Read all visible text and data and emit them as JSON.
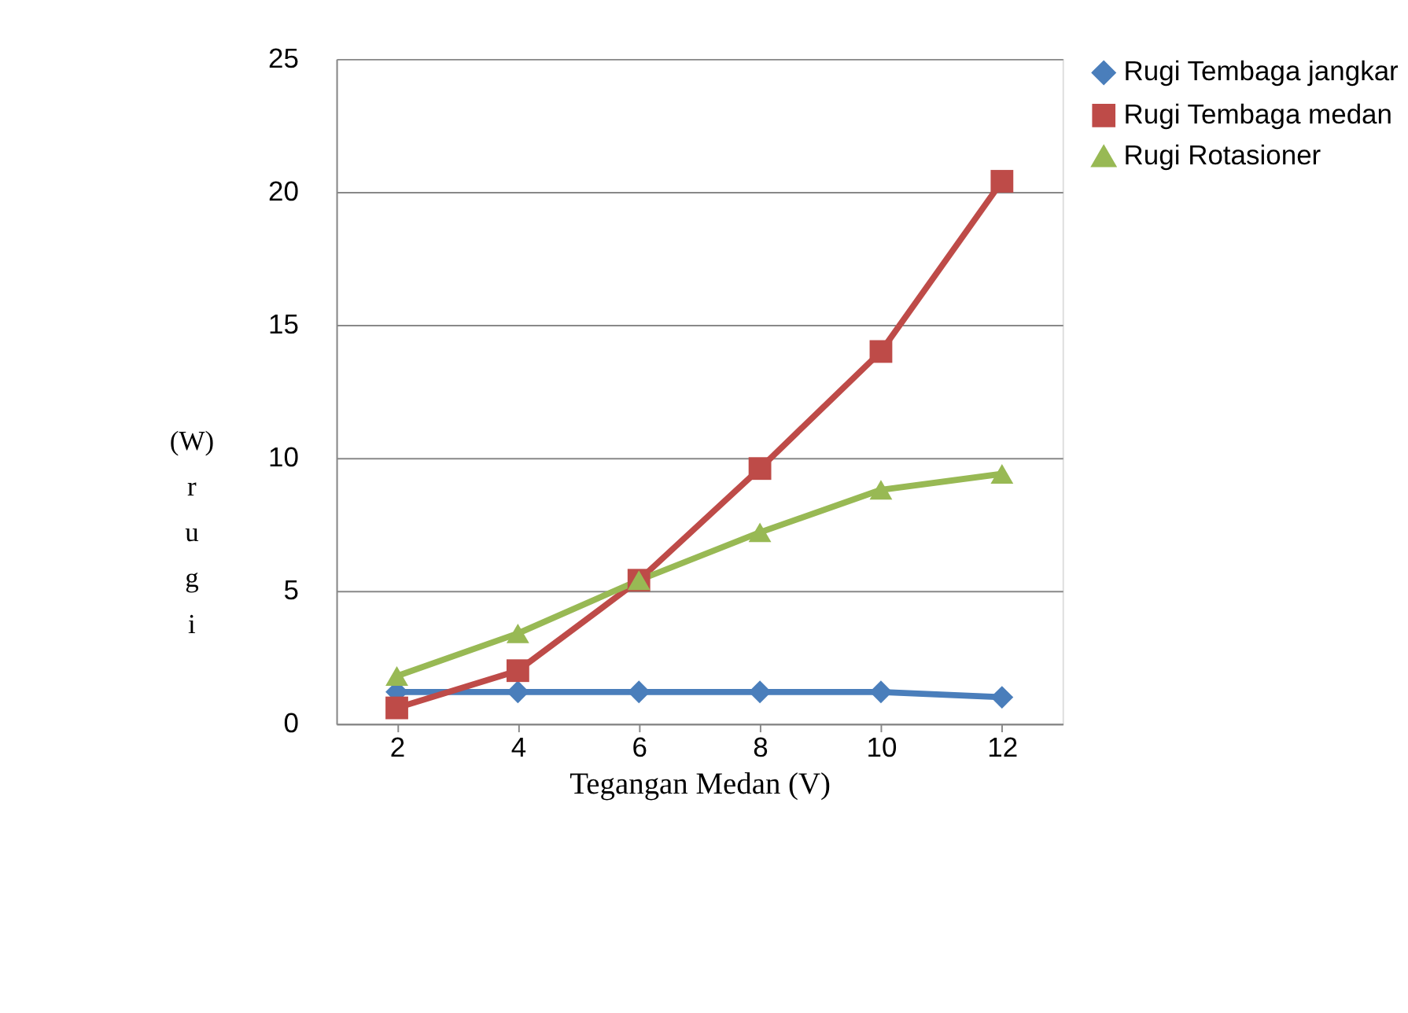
{
  "chart_data": {
    "type": "line",
    "xlabel": "Tegangan Medan (V)",
    "ylabel": "(W) rugi",
    "categories": [
      "2",
      "4",
      "6",
      "8",
      "10",
      "12"
    ],
    "series": [
      {
        "name": "Rugi Tembaga jangkar",
        "color": "#4a7ebb",
        "marker": "diamond",
        "values": [
          1.2,
          1.2,
          1.2,
          1.2,
          1.2,
          1.0
        ]
      },
      {
        "name": "Rugi Tembaga medan",
        "color": "#be4b48",
        "marker": "square",
        "values": [
          0.6,
          2.0,
          5.4,
          9.6,
          14.0,
          20.4
        ]
      },
      {
        "name": "Rugi Rotasioner",
        "color": "#98b954",
        "marker": "triangle",
        "values": [
          1.8,
          3.4,
          5.4,
          7.2,
          8.8,
          9.4
        ]
      }
    ],
    "ylim": [
      0,
      25
    ],
    "yticks": [
      0,
      5,
      10,
      15,
      20,
      25
    ],
    "grid": "y",
    "legend": "right",
    "line_style": "solid"
  }
}
